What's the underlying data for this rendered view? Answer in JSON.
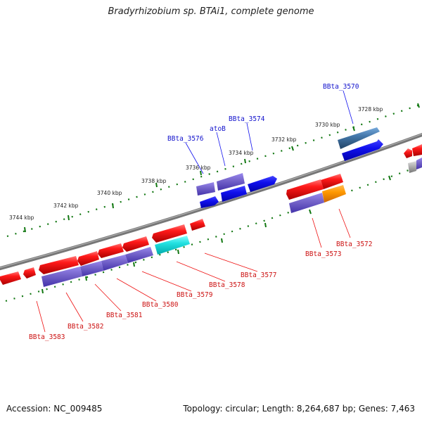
{
  "header": {
    "title": "Bradyrhizobium sp. BTAi1, complete genome"
  },
  "footer": {
    "accession": "Accession: NC_009485",
    "topology": "Topology: circular; Length: 8,264,687 bp; Genes: 7,463"
  },
  "ticks": [
    "3728 kbp",
    "3730 kbp",
    "3732 kbp",
    "3734 kbp",
    "3736 kbp",
    "3738 kbp",
    "3740 kbp",
    "3742 kbp",
    "3744 kbp"
  ],
  "labels": {
    "top": [
      "BBta_3570",
      "BBta_3574",
      "atoB",
      "BBta_3576"
    ],
    "bottom": [
      "BBta_3572",
      "BBta_3573",
      "BBta_3577",
      "BBta_3578",
      "BBta_3579",
      "BBta_3580",
      "BBta_3581",
      "BBta_3582",
      "BBta_3583"
    ]
  },
  "colors": {
    "cds": "#ee1111",
    "gene": "#7766cc",
    "rna": "#1111ee",
    "misc": "#22dddd",
    "orange": "#ff9900",
    "steel": "#4477aa",
    "tick": "#117711"
  }
}
